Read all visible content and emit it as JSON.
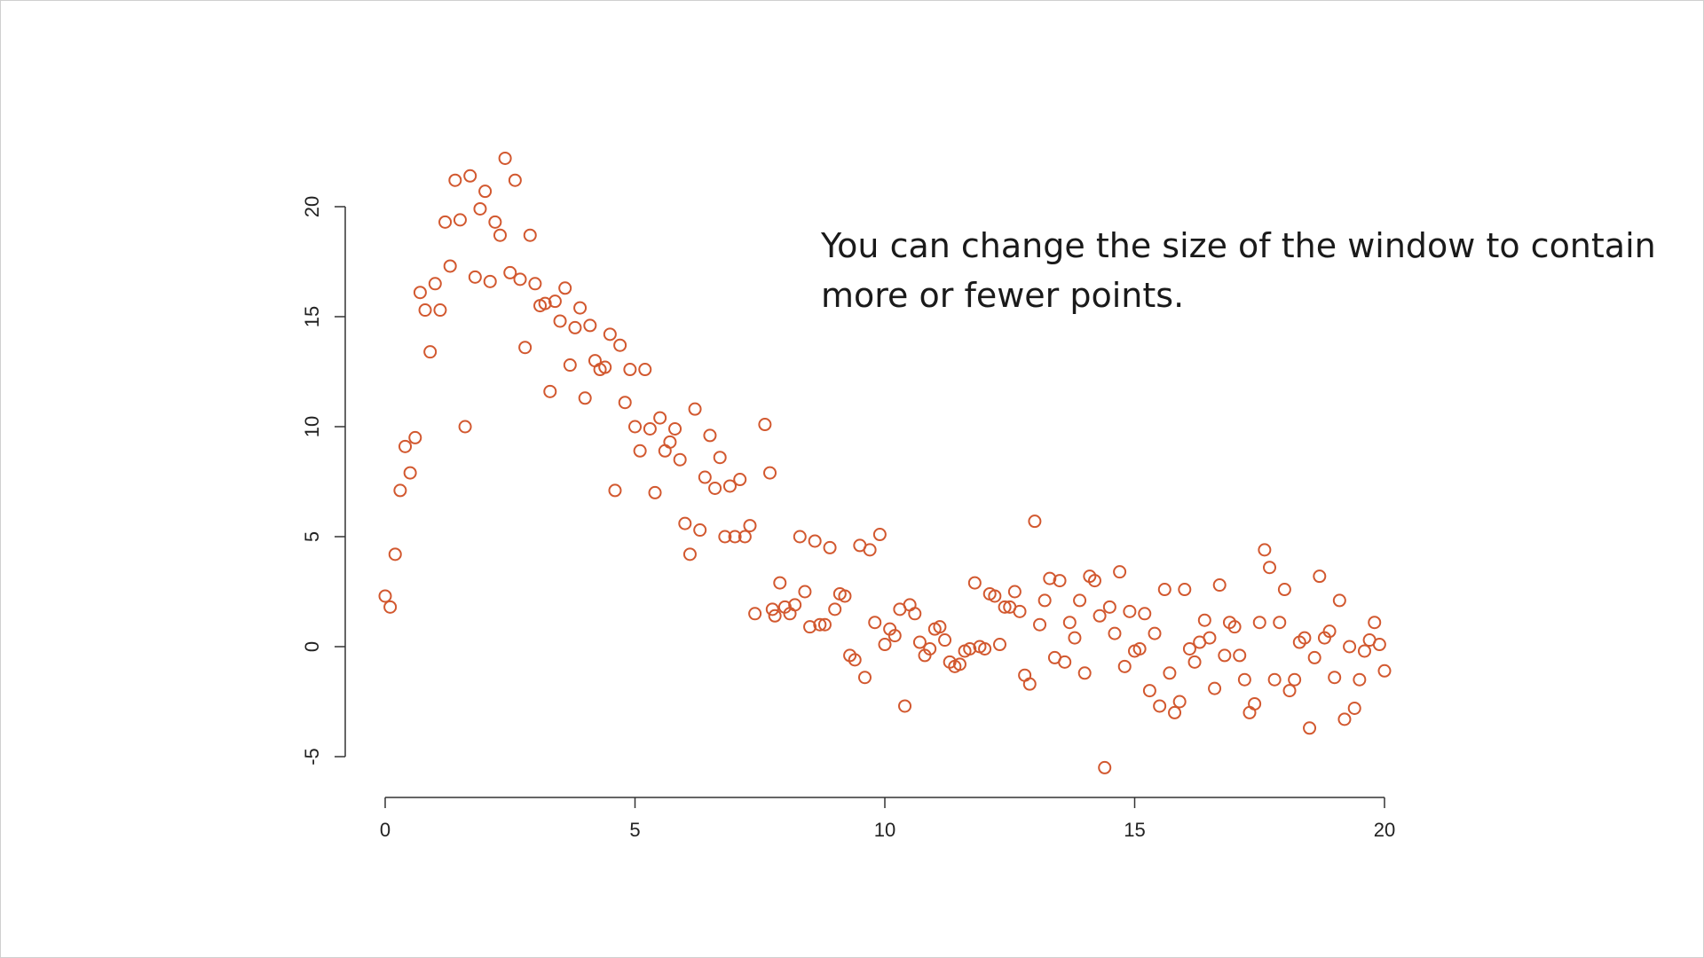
{
  "annotation": "You can change the size of the window to contain more or fewer points.",
  "colors": {
    "points": "#d2582f",
    "axis": "#333333"
  },
  "chart_data": {
    "type": "scatter",
    "title": "",
    "xlabel": "",
    "ylabel": "",
    "xlim": [
      0,
      20
    ],
    "ylim": [
      -5,
      20
    ],
    "x_ticks": [
      0,
      5,
      10,
      15,
      20
    ],
    "y_ticks": [
      -5,
      0,
      5,
      10,
      15,
      20
    ],
    "x_tick_labels": [
      "0",
      "5",
      "10",
      "15",
      "20"
    ],
    "y_tick_labels": [
      "-5",
      "0",
      "5",
      "10",
      "15",
      "20"
    ],
    "grid": false,
    "marker": "open-circle",
    "points": [
      [
        0.0,
        2.3
      ],
      [
        0.1,
        1.8
      ],
      [
        0.2,
        4.2
      ],
      [
        0.3,
        7.1
      ],
      [
        0.4,
        9.1
      ],
      [
        0.5,
        7.9
      ],
      [
        0.6,
        9.5
      ],
      [
        0.7,
        16.1
      ],
      [
        0.8,
        15.3
      ],
      [
        0.9,
        13.4
      ],
      [
        1.0,
        16.5
      ],
      [
        1.1,
        15.3
      ],
      [
        1.2,
        19.3
      ],
      [
        1.3,
        17.3
      ],
      [
        1.4,
        21.2
      ],
      [
        1.5,
        19.4
      ],
      [
        1.6,
        10.0
      ],
      [
        1.7,
        21.4
      ],
      [
        1.8,
        16.8
      ],
      [
        1.9,
        19.9
      ],
      [
        2.0,
        20.7
      ],
      [
        2.1,
        16.6
      ],
      [
        2.2,
        19.3
      ],
      [
        2.3,
        18.7
      ],
      [
        2.4,
        22.2
      ],
      [
        2.5,
        17.0
      ],
      [
        2.6,
        21.2
      ],
      [
        2.7,
        16.7
      ],
      [
        2.8,
        13.6
      ],
      [
        2.9,
        18.7
      ],
      [
        3.0,
        16.5
      ],
      [
        3.1,
        15.5
      ],
      [
        3.2,
        15.6
      ],
      [
        3.3,
        11.6
      ],
      [
        3.4,
        15.7
      ],
      [
        3.5,
        14.8
      ],
      [
        3.6,
        16.3
      ],
      [
        3.7,
        12.8
      ],
      [
        3.8,
        14.5
      ],
      [
        3.9,
        15.4
      ],
      [
        4.0,
        11.3
      ],
      [
        4.1,
        14.6
      ],
      [
        4.2,
        13.0
      ],
      [
        4.3,
        12.6
      ],
      [
        4.4,
        12.7
      ],
      [
        4.5,
        14.2
      ],
      [
        4.6,
        7.1
      ],
      [
        4.7,
        13.7
      ],
      [
        4.8,
        11.1
      ],
      [
        4.9,
        12.6
      ],
      [
        5.0,
        10.0
      ],
      [
        5.1,
        8.9
      ],
      [
        5.2,
        12.6
      ],
      [
        5.3,
        9.9
      ],
      [
        5.4,
        7.0
      ],
      [
        5.5,
        10.4
      ],
      [
        5.6,
        8.9
      ],
      [
        5.7,
        9.3
      ],
      [
        5.8,
        9.9
      ],
      [
        5.9,
        8.5
      ],
      [
        6.0,
        5.6
      ],
      [
        6.1,
        4.2
      ],
      [
        6.2,
        10.8
      ],
      [
        6.3,
        5.3
      ],
      [
        6.4,
        7.7
      ],
      [
        6.5,
        9.6
      ],
      [
        6.6,
        7.2
      ],
      [
        6.7,
        8.6
      ],
      [
        6.8,
        5.0
      ],
      [
        6.9,
        7.3
      ],
      [
        7.0,
        5.0
      ],
      [
        7.1,
        7.6
      ],
      [
        7.2,
        5.0
      ],
      [
        7.3,
        5.5
      ],
      [
        7.4,
        1.5
      ],
      [
        7.6,
        10.1
      ],
      [
        7.7,
        7.9
      ],
      [
        7.75,
        1.7
      ],
      [
        7.8,
        1.4
      ],
      [
        7.9,
        2.9
      ],
      [
        8.0,
        1.8
      ],
      [
        8.1,
        1.5
      ],
      [
        8.2,
        1.9
      ],
      [
        8.3,
        5.0
      ],
      [
        8.4,
        2.5
      ],
      [
        8.5,
        0.9
      ],
      [
        8.6,
        4.8
      ],
      [
        8.7,
        1.0
      ],
      [
        8.8,
        1.0
      ],
      [
        8.9,
        4.5
      ],
      [
        9.0,
        1.7
      ],
      [
        9.1,
        2.4
      ],
      [
        9.2,
        2.3
      ],
      [
        9.3,
        -0.4
      ],
      [
        9.4,
        -0.6
      ],
      [
        9.5,
        4.6
      ],
      [
        9.6,
        -1.4
      ],
      [
        9.7,
        4.4
      ],
      [
        9.8,
        1.1
      ],
      [
        9.9,
        5.1
      ],
      [
        10.0,
        0.1
      ],
      [
        10.1,
        0.8
      ],
      [
        10.2,
        0.5
      ],
      [
        10.3,
        1.7
      ],
      [
        10.4,
        -2.7
      ],
      [
        10.5,
        1.9
      ],
      [
        10.6,
        1.5
      ],
      [
        10.7,
        0.2
      ],
      [
        10.8,
        -0.4
      ],
      [
        10.9,
        -0.1
      ],
      [
        11.0,
        0.8
      ],
      [
        11.1,
        0.9
      ],
      [
        11.2,
        0.3
      ],
      [
        11.3,
        -0.7
      ],
      [
        11.4,
        -0.9
      ],
      [
        11.5,
        -0.8
      ],
      [
        11.6,
        -0.2
      ],
      [
        11.7,
        -0.1
      ],
      [
        11.8,
        2.9
      ],
      [
        11.9,
        0.0
      ],
      [
        12.0,
        -0.1
      ],
      [
        12.1,
        2.4
      ],
      [
        12.2,
        2.3
      ],
      [
        12.3,
        0.1
      ],
      [
        12.4,
        1.8
      ],
      [
        12.5,
        1.8
      ],
      [
        12.6,
        2.5
      ],
      [
        12.7,
        1.6
      ],
      [
        12.8,
        -1.3
      ],
      [
        12.9,
        -1.7
      ],
      [
        13.0,
        5.7
      ],
      [
        13.1,
        1.0
      ],
      [
        13.2,
        2.1
      ],
      [
        13.3,
        3.1
      ],
      [
        13.4,
        -0.5
      ],
      [
        13.5,
        3.0
      ],
      [
        13.6,
        -0.7
      ],
      [
        13.7,
        1.1
      ],
      [
        13.8,
        0.4
      ],
      [
        13.9,
        2.1
      ],
      [
        14.0,
        -1.2
      ],
      [
        14.1,
        3.2
      ],
      [
        14.2,
        3.0
      ],
      [
        14.3,
        1.4
      ],
      [
        14.4,
        -5.5
      ],
      [
        14.5,
        1.8
      ],
      [
        14.6,
        0.6
      ],
      [
        14.7,
        3.4
      ],
      [
        14.8,
        -0.9
      ],
      [
        14.9,
        1.6
      ],
      [
        15.0,
        -0.2
      ],
      [
        15.1,
        -0.1
      ],
      [
        15.2,
        1.5
      ],
      [
        15.3,
        -2.0
      ],
      [
        15.4,
        0.6
      ],
      [
        15.5,
        -2.7
      ],
      [
        15.6,
        2.6
      ],
      [
        15.7,
        -1.2
      ],
      [
        15.8,
        -3.0
      ],
      [
        15.9,
        -2.5
      ],
      [
        16.0,
        2.6
      ],
      [
        16.1,
        -0.1
      ],
      [
        16.2,
        -0.7
      ],
      [
        16.3,
        0.2
      ],
      [
        16.4,
        1.2
      ],
      [
        16.5,
        0.4
      ],
      [
        16.6,
        -1.9
      ],
      [
        16.7,
        2.8
      ],
      [
        16.8,
        -0.4
      ],
      [
        16.9,
        1.1
      ],
      [
        17.0,
        0.9
      ],
      [
        17.1,
        -0.4
      ],
      [
        17.2,
        -1.5
      ],
      [
        17.3,
        -3.0
      ],
      [
        17.4,
        -2.6
      ],
      [
        17.5,
        1.1
      ],
      [
        17.6,
        4.4
      ],
      [
        17.7,
        3.6
      ],
      [
        17.8,
        -1.5
      ],
      [
        17.9,
        1.1
      ],
      [
        18.0,
        2.6
      ],
      [
        18.1,
        -2.0
      ],
      [
        18.2,
        -1.5
      ],
      [
        18.3,
        0.2
      ],
      [
        18.4,
        0.4
      ],
      [
        18.5,
        -3.7
      ],
      [
        18.6,
        -0.5
      ],
      [
        18.7,
        3.2
      ],
      [
        18.8,
        0.4
      ],
      [
        18.9,
        0.7
      ],
      [
        19.0,
        -1.4
      ],
      [
        19.1,
        2.1
      ],
      [
        19.2,
        -3.3
      ],
      [
        19.3,
        0.0
      ],
      [
        19.4,
        -2.8
      ],
      [
        19.5,
        -1.5
      ],
      [
        19.6,
        -0.2
      ],
      [
        19.7,
        0.3
      ],
      [
        19.8,
        1.1
      ],
      [
        19.9,
        0.1
      ],
      [
        20.0,
        -1.1
      ]
    ]
  }
}
